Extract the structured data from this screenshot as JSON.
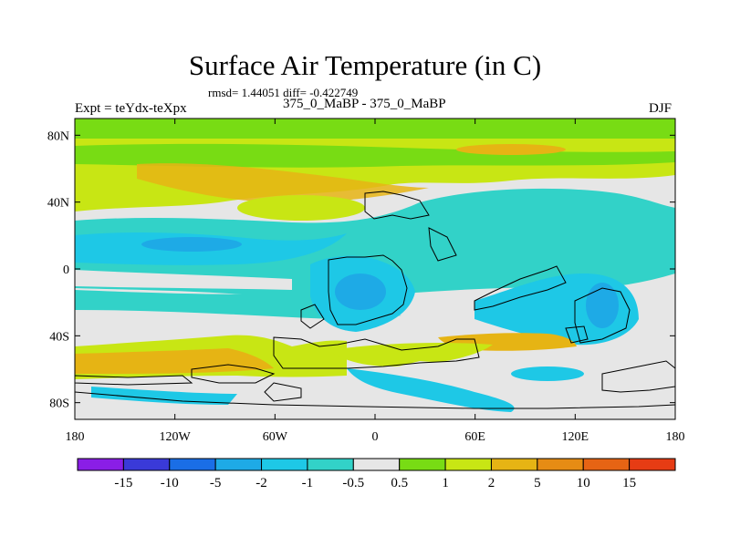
{
  "title": "Surface Air Temperature (in C)",
  "stats": "rmsd= 1.44051 diff= -0.422749",
  "experiment": "Expt = teYdx-teXpx",
  "period": "375_0_MaBP - 375_0_MaBP",
  "season": "DJF",
  "lat_ticks": [
    {
      "value": 80,
      "label": "80N"
    },
    {
      "value": 40,
      "label": "40N"
    },
    {
      "value": 0,
      "label": "0"
    },
    {
      "value": -40,
      "label": "40S"
    },
    {
      "value": -80,
      "label": "80S"
    }
  ],
  "lon_ticks": [
    {
      "value": -180,
      "label": "180"
    },
    {
      "value": -120,
      "label": "120W"
    },
    {
      "value": -60,
      "label": "60W"
    },
    {
      "value": 0,
      "label": "0"
    },
    {
      "value": 60,
      "label": "60E"
    },
    {
      "value": 120,
      "label": "120E"
    },
    {
      "value": 180,
      "label": "180"
    }
  ],
  "colorbar": {
    "colors": [
      "#8a1ee6",
      "#3a3ad8",
      "#1a6ee6",
      "#1eaae6",
      "#1ec8e6",
      "#32d2c8",
      "#e6e6e6",
      "#78dc14",
      "#c8e614",
      "#e6b414",
      "#e68c14",
      "#e66414",
      "#e63c14"
    ],
    "labels": [
      "-15",
      "-10",
      "-5",
      "-2",
      "-1",
      "-0.5",
      "0.5",
      "1",
      "2",
      "5",
      "10",
      "15"
    ]
  }
}
